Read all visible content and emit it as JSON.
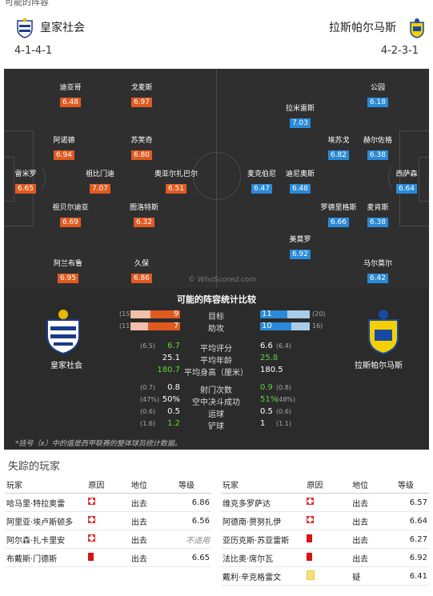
{
  "top_cut": "可能的阵容",
  "home": {
    "name": "皇家社会",
    "formation": "4-1-4-1",
    "players": [
      {
        "name": "雷米罗",
        "rating": "6.65"
      },
      {
        "name": "祖贝尔迪亚",
        "rating": "6.69"
      },
      {
        "name": "祖比门迪",
        "rating": "7.07"
      },
      {
        "name": "阿诺德",
        "rating": "6.94"
      },
      {
        "name": "迪亚哥",
        "rating": "6.48"
      },
      {
        "name": "阿兰布鲁",
        "rating": "6.95"
      },
      {
        "name": "戈麦斯",
        "rating": "6.97"
      },
      {
        "name": "苏笑奇",
        "rating": "6.80"
      },
      {
        "name": "奥亚尔扎巴尔",
        "rating": "6.51"
      },
      {
        "name": "图洛特斯",
        "rating": "6.32"
      },
      {
        "name": "久保",
        "rating": "6.86"
      }
    ]
  },
  "away": {
    "name": "拉斯帕尔马斯",
    "formation": "4-2-3-1",
    "players": [
      {
        "name": "西萨森",
        "rating": "6.64"
      },
      {
        "name": "公园",
        "rating": "6.18"
      },
      {
        "name": "赫尔佐格",
        "rating": "6.38"
      },
      {
        "name": "麦肯斯",
        "rating": "6.38"
      },
      {
        "name": "马尔莫尔",
        "rating": "6.42"
      },
      {
        "name": "埃苏戈",
        "rating": "6.82"
      },
      {
        "name": "罗德里格斯",
        "rating": "6.66"
      },
      {
        "name": "拉米雷斯",
        "rating": "7.03"
      },
      {
        "name": "迪尼奥斯",
        "rating": "6.48"
      },
      {
        "name": "美莫罗",
        "rating": "6.92"
      },
      {
        "name": "麦克伯尼",
        "rating": "6.47"
      }
    ]
  },
  "pitch_watermark": "© WhoScored.com",
  "comparison": {
    "title": "可能的阵容统计比较",
    "goals": {
      "label": "目标",
      "home": "9",
      "home_ghost": "(15",
      "away": "11",
      "away_ghost": "(20)",
      "home_frac": 0.6,
      "away_frac": 0.55
    },
    "assists": {
      "label": "助攻",
      "home": "7",
      "home_ghost": "(11",
      "away": "10",
      "away_ghost": "16)",
      "home_frac": 0.64,
      "away_frac": 0.63
    },
    "rows1": [
      {
        "label": "平均评分",
        "home": "6.7",
        "home_ghost": "(6.5)",
        "home_green": true,
        "away": "6.6",
        "away_ghost": "(6.4)",
        "away_green": false
      },
      {
        "label": "平均年龄",
        "home": "25.1",
        "home_ghost": "",
        "home_green": false,
        "away": "25.8",
        "away_ghost": "",
        "away_green": true
      },
      {
        "label": "平均身高（厘米）",
        "home": "180.7",
        "home_ghost": "",
        "home_green": true,
        "away": "180.5",
        "away_ghost": "",
        "away_green": false
      }
    ],
    "rows2": [
      {
        "label": "射门次数",
        "home": "0.8",
        "home_ghost": "(0.7)",
        "home_green": false,
        "away": "0.9",
        "away_ghost": "(0.8)",
        "away_green": true
      },
      {
        "label": "空中决斗成功",
        "home": "50%",
        "home_ghost": "(47%)",
        "home_green": false,
        "away": "51%",
        "away_ghost": "(48%)",
        "away_green": true
      },
      {
        "label": "运球",
        "home": "0.5",
        "home_ghost": "(0.6)",
        "home_green": false,
        "away": "0.5",
        "away_ghost": "(0.6)",
        "away_green": false
      },
      {
        "label": "铲球",
        "home": "1.2",
        "home_ghost": "(1.6)",
        "home_green": true,
        "away": "1",
        "away_ghost": "(1.1)",
        "away_green": false
      }
    ],
    "note": "*括号（x）中的值是西甲联赛的整体球员统计数据。"
  },
  "missing": {
    "title": "失踪的玩家",
    "headers": {
      "player": "玩家",
      "cause": "原因",
      "status": "地位",
      "grade": "等级"
    },
    "home": [
      {
        "player": "哈马里·特拉奥雷",
        "cause": "injury",
        "status": "出去",
        "grade": "6.86"
      },
      {
        "player": "阿里亚·埃卢斯顿多",
        "cause": "injury",
        "status": "出去",
        "grade": "6.56"
      },
      {
        "player": "阿尔森·扎卡里安",
        "cause": "injury",
        "status": "出去",
        "grade": "不适用"
      },
      {
        "player": "布戴斯·门德斯",
        "cause": "red",
        "status": "出去",
        "grade": "6.65"
      }
    ],
    "away": [
      {
        "player": "维克多罗萨达",
        "cause": "injury",
        "status": "出去",
        "grade": "6.57"
      },
      {
        "player": "阿德南·贾努扎伊",
        "cause": "injury",
        "status": "出去",
        "grade": "6.64"
      },
      {
        "player": "亚历克斯·苏亚雷斯",
        "cause": "red",
        "status": "出去",
        "grade": "6.27"
      },
      {
        "player": "法比奥·席尔瓦",
        "cause": "red",
        "status": "出去",
        "grade": "6.92"
      },
      {
        "player": "戴利·辛克格雷文",
        "cause": "doubt",
        "status": "疑",
        "grade": "6.41"
      }
    ]
  }
}
